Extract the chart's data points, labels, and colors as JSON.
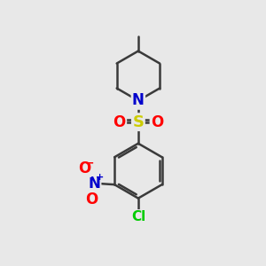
{
  "background_color": "#e8e8e8",
  "bond_color": "#3a3a3a",
  "bond_width": 1.8,
  "atom_colors": {
    "N": "#0000cc",
    "S": "#cccc00",
    "O": "#ff0000",
    "Cl": "#00cc00",
    "C": "#3a3a3a"
  },
  "atom_fontsizes": {
    "N": 12,
    "S": 12,
    "O": 11,
    "Cl": 11
  }
}
